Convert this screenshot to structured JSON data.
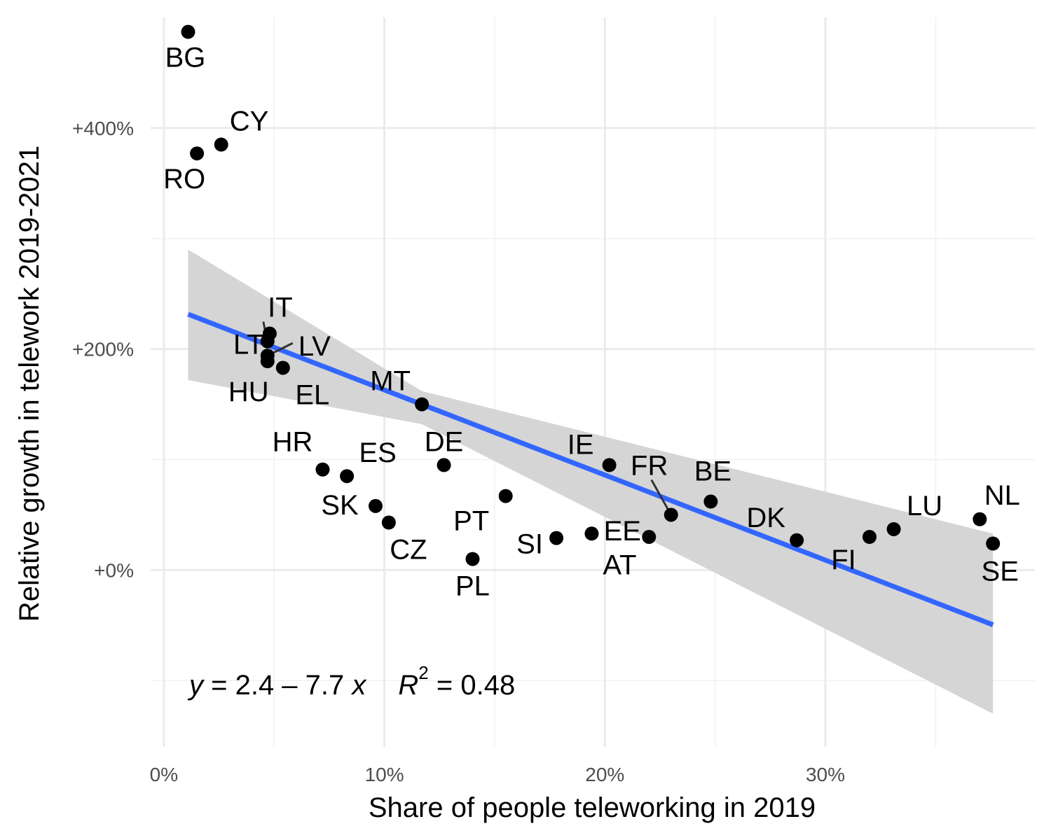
{
  "chart_data": {
    "type": "scatter",
    "xlabel": "Share of people teleworking in 2019",
    "ylabel": "Relative growth in telework 2019-2021",
    "xlim": [
      -0.006,
      0.395
    ],
    "ylim": [
      -1.6,
      5.0
    ],
    "x_ticks": [
      {
        "value": 0.0,
        "label": "0%"
      },
      {
        "value": 0.1,
        "label": "10%"
      },
      {
        "value": 0.2,
        "label": "20%"
      },
      {
        "value": 0.3,
        "label": "30%"
      }
    ],
    "y_ticks": [
      {
        "value": 0,
        "label": "+0%"
      },
      {
        "value": 2,
        "label": "+200%"
      },
      {
        "value": 4,
        "label": "+400%"
      }
    ],
    "points": [
      {
        "label": "BG",
        "x": 0.011,
        "y": 4.87
      },
      {
        "label": "CY",
        "x": 0.026,
        "y": 3.85
      },
      {
        "label": "RO",
        "x": 0.015,
        "y": 3.77
      },
      {
        "label": "IT",
        "x": 0.048,
        "y": 2.14
      },
      {
        "label": "LT",
        "x": 0.047,
        "y": 2.07
      },
      {
        "label": "LV",
        "x": 0.047,
        "y": 1.94
      },
      {
        "label": "HU",
        "x": 0.047,
        "y": 1.89
      },
      {
        "label": "EL",
        "x": 0.054,
        "y": 1.83
      },
      {
        "label": "MT",
        "x": 0.117,
        "y": 1.5
      },
      {
        "label": "HR",
        "x": 0.072,
        "y": 0.91
      },
      {
        "label": "ES",
        "x": 0.083,
        "y": 0.85
      },
      {
        "label": "DE",
        "x": 0.127,
        "y": 0.95
      },
      {
        "label": "SK",
        "x": 0.096,
        "y": 0.58
      },
      {
        "label": "CZ",
        "x": 0.102,
        "y": 0.43
      },
      {
        "label": "PT",
        "x": 0.155,
        "y": 0.67
      },
      {
        "label": "PL",
        "x": 0.14,
        "y": 0.1
      },
      {
        "label": "SI",
        "x": 0.178,
        "y": 0.29
      },
      {
        "label": "IE",
        "x": 0.202,
        "y": 0.95
      },
      {
        "label": "AT",
        "x": 0.194,
        "y": 0.33
      },
      {
        "label": "EE",
        "x": 0.22,
        "y": 0.3
      },
      {
        "label": "FR",
        "x": 0.23,
        "y": 0.5
      },
      {
        "label": "BE",
        "x": 0.248,
        "y": 0.62
      },
      {
        "label": "DK",
        "x": 0.287,
        "y": 0.27
      },
      {
        "label": "FI",
        "x": 0.32,
        "y": 0.3
      },
      {
        "label": "LU",
        "x": 0.331,
        "y": 0.37
      },
      {
        "label": "NL",
        "x": 0.37,
        "y": 0.46
      },
      {
        "label": "SE",
        "x": 0.376,
        "y": 0.24
      }
    ],
    "fit": {
      "intercept": 2.4,
      "slope": -7.7,
      "x_range": [
        0.011,
        0.376
      ],
      "ci_upper": [
        [
          0.011,
          2.9
        ],
        [
          0.117,
          1.62
        ],
        [
          0.376,
          0.33
        ]
      ],
      "ci_lower": [
        [
          0.011,
          1.72
        ],
        [
          0.117,
          1.32
        ],
        [
          0.376,
          -1.3
        ]
      ],
      "line_color": "#3366ff",
      "band_color": "#d5d5d5"
    },
    "equation": {
      "y": "y",
      "eq_text": " = 2.4 – 7.7 ",
      "x": "x",
      "r": "R",
      "sup": "2",
      "r2_text": " = 0.48"
    },
    "grid": true
  }
}
